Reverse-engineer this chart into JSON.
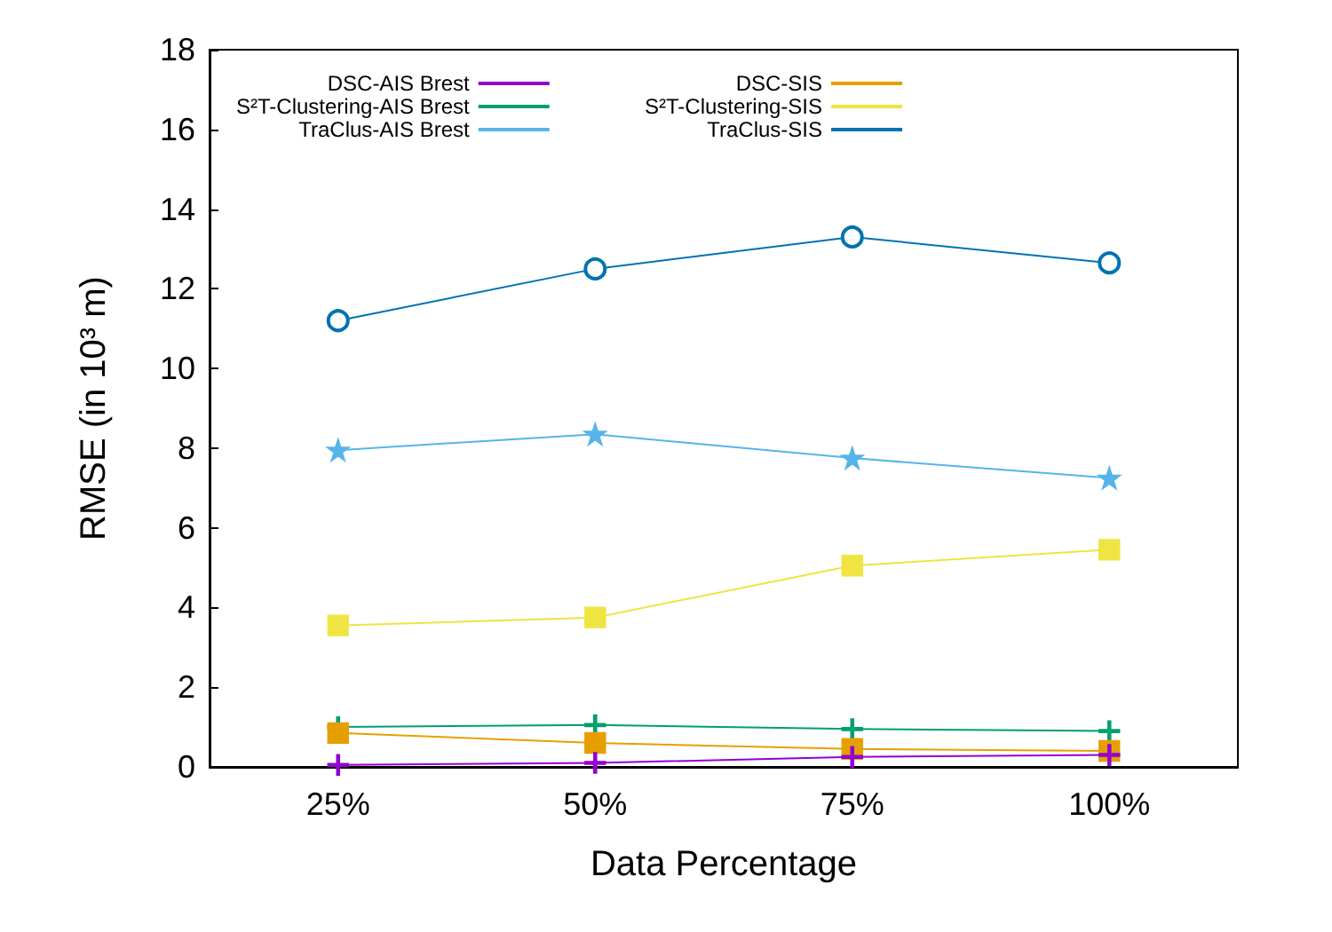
{
  "chart_data": {
    "type": "line",
    "xlabel": "Data Percentage",
    "ylabel": "RMSE (in 10³ m)",
    "categories": [
      "25%",
      "50%",
      "75%",
      "100%"
    ],
    "series": [
      {
        "name": "DSC-AIS Brest",
        "color": "#9400d3",
        "marker": "cross",
        "values": [
          0.05,
          0.1,
          0.25,
          0.3
        ]
      },
      {
        "name": "DSC-SIS",
        "color": "#e69f00",
        "marker": "square",
        "values": [
          0.85,
          0.6,
          0.45,
          0.4
        ]
      },
      {
        "name": "S²T-Clustering-AIS Brest",
        "color": "#009e73",
        "marker": "cross",
        "values": [
          1.0,
          1.05,
          0.95,
          0.9
        ]
      },
      {
        "name": "S²T-Clustering-SIS",
        "color": "#f0e442",
        "marker": "square",
        "values": [
          3.55,
          3.75,
          5.05,
          5.45
        ]
      },
      {
        "name": "TraClus-AIS Brest",
        "color": "#56b4e9",
        "marker": "star",
        "values": [
          7.95,
          8.35,
          7.75,
          7.25
        ]
      },
      {
        "name": "TraClus-SIS",
        "color": "#0072b2",
        "marker": "circle",
        "values": [
          11.2,
          12.5,
          13.3,
          12.65
        ]
      }
    ],
    "ylim": [
      0,
      18
    ],
    "yticks": [
      0,
      2,
      4,
      6,
      8,
      10,
      12,
      14,
      16,
      18
    ],
    "grid": false,
    "legend": "top",
    "line_style": "solid"
  }
}
